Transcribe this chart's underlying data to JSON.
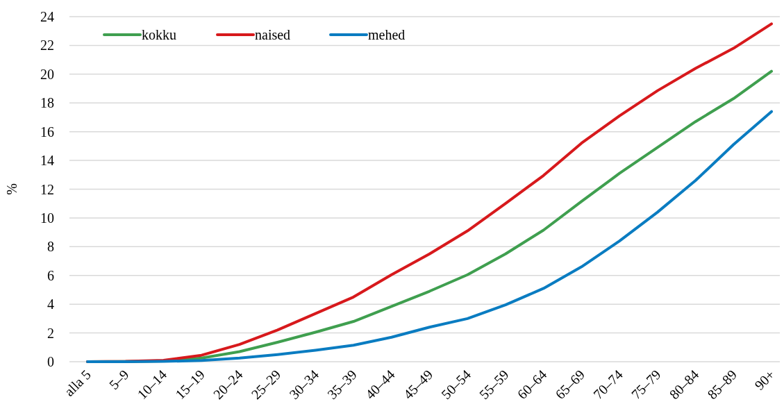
{
  "chart_data": {
    "type": "line",
    "ylabel": "%",
    "categories": [
      "alla 5",
      "5–9",
      "10–14",
      "15–19",
      "20–24",
      "25–29",
      "30–34",
      "35–39",
      "40–44",
      "45–49",
      "50–54",
      "55–59",
      "60–64",
      "65–69",
      "70–74",
      "75–79",
      "80–84",
      "85–89",
      "90+"
    ],
    "series": [
      {
        "name": "kokku",
        "color": "#3f9f4f",
        "values": [
          0,
          0.01,
          0.05,
          0.25,
          0.7,
          1.35,
          2.05,
          2.8,
          3.85,
          4.9,
          6.05,
          7.5,
          9.15,
          11.15,
          13.1,
          14.9,
          16.7,
          18.3,
          20.2
        ]
      },
      {
        "name": "naised",
        "color": "#d7191c",
        "values": [
          0,
          0.02,
          0.1,
          0.45,
          1.2,
          2.2,
          3.35,
          4.5,
          6.05,
          7.5,
          9.1,
          11.0,
          12.95,
          15.2,
          17.1,
          18.85,
          20.4,
          21.8,
          23.5
        ]
      },
      {
        "name": "mehed",
        "color": "#0a7cc1",
        "values": [
          0,
          0,
          0.02,
          0.08,
          0.25,
          0.5,
          0.8,
          1.15,
          1.7,
          2.4,
          3.0,
          3.95,
          5.1,
          6.6,
          8.4,
          10.4,
          12.6,
          15.1,
          17.4
        ]
      }
    ],
    "ylim": [
      0,
      24
    ],
    "yticks": [
      0,
      2,
      4,
      6,
      8,
      10,
      12,
      14,
      16,
      18,
      20,
      22,
      24
    ],
    "grid": "y",
    "legend": "top left",
    "marker": "none",
    "line_style": "solid"
  }
}
